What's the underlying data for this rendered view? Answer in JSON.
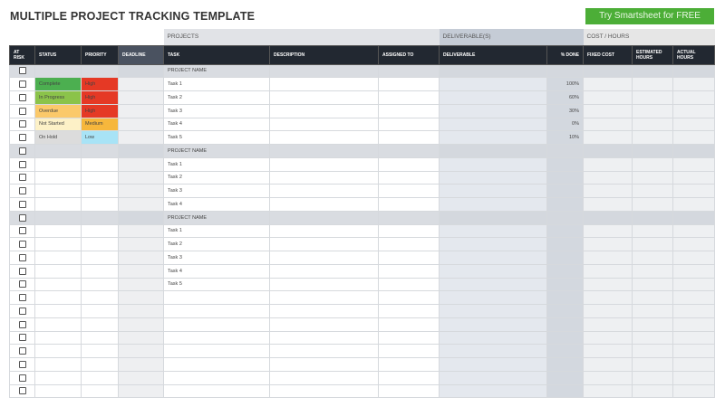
{
  "title": "MULTIPLE PROJECT TRACKING TEMPLATE",
  "cta": "Try Smartsheet for FREE",
  "groups": {
    "projects": "PROJECTS",
    "deliverables": "DELIVERABLE(S)",
    "cost": "COST / HOURS"
  },
  "columns": [
    "AT RISK",
    "STATUS",
    "PRIORITY",
    "DEADLINE",
    "TASK",
    "DESCRIPTION",
    "ASSIGNED TO",
    "DELIVERABLE",
    "% DONE",
    "FIXED COST",
    "ESTIMATED HOURS",
    "ACTUAL HOURS"
  ],
  "colors": {
    "Complete": "#4caf50",
    "In Progress": "#8bc34a",
    "Overdue": "#fbc96a",
    "Not Started": "#fdf1c7",
    "On Hold": "#dcdcdc",
    "High": "#e53925",
    "Medium": "#f6b73c",
    "Low": "#a8e3f6"
  },
  "rows": [
    {
      "type": "project",
      "task": "PROJECT NAME"
    },
    {
      "status": "Complete",
      "priority": "High",
      "task": "Task 1",
      "pct": "100%"
    },
    {
      "status": "In Progress",
      "priority": "High",
      "task": "Task 2",
      "pct": "60%"
    },
    {
      "status": "Overdue",
      "priority": "High",
      "task": "Task 3",
      "pct": "30%"
    },
    {
      "status": "Not Started",
      "priority": "Medium",
      "task": "Task 4",
      "pct": "0%"
    },
    {
      "status": "On Hold",
      "priority": "Low",
      "task": "Task 5",
      "pct": "10%"
    },
    {
      "type": "project",
      "task": "PROJECT NAME"
    },
    {
      "task": "Task 1"
    },
    {
      "task": "Task 2"
    },
    {
      "task": "Task 3"
    },
    {
      "task": "Task 4"
    },
    {
      "type": "project",
      "task": "PROJECT NAME"
    },
    {
      "task": "Task 1"
    },
    {
      "task": "Task 2"
    },
    {
      "task": "Task 3"
    },
    {
      "task": "Task 4"
    },
    {
      "task": "Task 5"
    },
    {},
    {},
    {},
    {},
    {},
    {},
    {},
    {}
  ]
}
